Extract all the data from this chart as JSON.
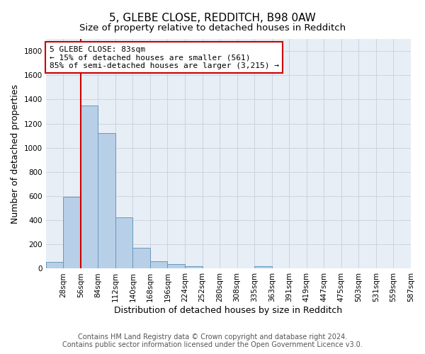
{
  "title": "5, GLEBE CLOSE, REDDITCH, B98 0AW",
  "subtitle": "Size of property relative to detached houses in Redditch",
  "xlabel": "Distribution of detached houses by size in Redditch",
  "ylabel": "Number of detached properties",
  "footer_line1": "Contains HM Land Registry data © Crown copyright and database right 2024.",
  "footer_line2": "Contains public sector information licensed under the Open Government Licence v3.0.",
  "categories": [
    "28sqm",
    "56sqm",
    "84sqm",
    "112sqm",
    "140sqm",
    "168sqm",
    "196sqm",
    "224sqm",
    "252sqm",
    "280sqm",
    "308sqm",
    "335sqm",
    "363sqm",
    "391sqm",
    "419sqm",
    "447sqm",
    "475sqm",
    "503sqm",
    "531sqm",
    "559sqm",
    "587sqm"
  ],
  "values": [
    55,
    595,
    1350,
    1120,
    425,
    170,
    60,
    38,
    18,
    0,
    0,
    0,
    20,
    0,
    0,
    0,
    0,
    0,
    0,
    0,
    0
  ],
  "bar_color": "#b8cfe8",
  "bar_edge_color": "#6699bb",
  "annotation_label": "5 GLEBE CLOSE: 83sqm",
  "annotation_line1": "← 15% of detached houses are smaller (561)",
  "annotation_line2": "85% of semi-detached houses are larger (3,215) →",
  "ylim": [
    0,
    1900
  ],
  "yticks": [
    0,
    200,
    400,
    600,
    800,
    1000,
    1200,
    1400,
    1600,
    1800
  ],
  "bin_width": 28,
  "bg_color": "#e8eef6",
  "grid_color": "#c8d0dc",
  "annotation_box_color": "#cc0000",
  "red_line_color": "#cc0000",
  "title_fontsize": 11,
  "subtitle_fontsize": 9.5,
  "axis_label_fontsize": 9,
  "tick_fontsize": 7.5,
  "footer_fontsize": 7,
  "annotation_fontsize": 8
}
